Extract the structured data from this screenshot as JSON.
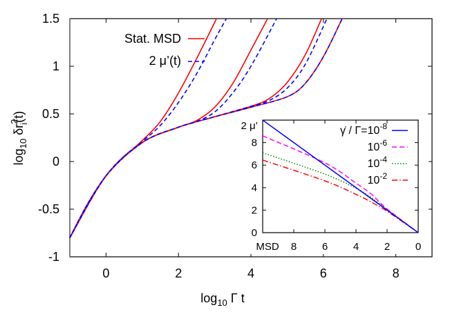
{
  "chart_data": [
    {
      "type": "line",
      "title": "",
      "xlabel": "log10 Γ t",
      "ylabel": "log10 δr_i^2(t)",
      "xlim": [
        -1,
        9
      ],
      "ylim": [
        -1,
        1.5
      ],
      "xticks": [
        "0",
        "2",
        "4",
        "6",
        "8"
      ],
      "yticks": [
        "-1",
        "-0.5",
        "0",
        "0.5",
        "1",
        "1.5"
      ],
      "grid": false,
      "legend_position": "upper left",
      "legend": [
        {
          "label": "Stat. MSD",
          "color": "#ff0000",
          "style": "solid"
        },
        {
          "label": "2 μ'(t)",
          "color": "#0000ff",
          "style": "dashed"
        }
      ],
      "series": [
        {
          "name": "Stat. MSD (γ̇/Γ=1e-2)",
          "color": "#ff0000",
          "style": "solid",
          "x": [
            -1,
            -0.5,
            0,
            0.5,
            1,
            1.5,
            2,
            2.5,
            3.05
          ],
          "y": [
            -0.8,
            -0.44,
            -0.15,
            0.05,
            0.22,
            0.42,
            0.72,
            1.08,
            1.5
          ]
        },
        {
          "name": "2 μ'(t) (γ̇/Γ=1e-2)",
          "color": "#0000ff",
          "style": "dashed",
          "x": [
            -1,
            -0.5,
            0,
            0.5,
            1,
            1.5,
            2,
            2.5,
            3,
            3.32
          ],
          "y": [
            -0.8,
            -0.44,
            -0.15,
            0.05,
            0.21,
            0.38,
            0.62,
            0.92,
            1.28,
            1.5
          ]
        },
        {
          "name": "Stat. MSD (γ̇/Γ=1e-4)",
          "color": "#ff0000",
          "style": "solid",
          "x": [
            -1,
            0,
            1,
            2,
            2.5,
            3,
            3.5,
            4,
            4.46
          ],
          "y": [
            -0.8,
            -0.15,
            0.2,
            0.36,
            0.43,
            0.57,
            0.82,
            1.17,
            1.5
          ]
        },
        {
          "name": "2 μ'(t) (γ̇/Γ=1e-4)",
          "color": "#0000ff",
          "style": "dashed",
          "x": [
            -1,
            0,
            1,
            2,
            2.5,
            3,
            3.5,
            4,
            4.71
          ],
          "y": [
            -0.8,
            -0.15,
            0.2,
            0.36,
            0.42,
            0.52,
            0.72,
            1.0,
            1.5
          ]
        },
        {
          "name": "Stat. MSD (γ̇/Γ=1e-6)",
          "color": "#ff0000",
          "style": "solid",
          "x": [
            -1,
            0,
            1,
            2,
            3,
            4,
            4.5,
            5,
            5.5,
            5.95
          ],
          "y": [
            -0.8,
            -0.15,
            0.2,
            0.36,
            0.47,
            0.58,
            0.66,
            0.83,
            1.12,
            1.5
          ]
        },
        {
          "name": "2 μ'(t) (γ̇/Γ=1e-6)",
          "color": "#0000ff",
          "style": "dashed",
          "x": [
            -1,
            0,
            1,
            2,
            3,
            4,
            4.5,
            5,
            5.5,
            6.1
          ],
          "y": [
            -0.8,
            -0.15,
            0.2,
            0.36,
            0.47,
            0.58,
            0.64,
            0.77,
            1.02,
            1.5
          ]
        },
        {
          "name": "Stat. MSD / 2 μ'(t) (γ̇/Γ=1e-8)",
          "color": "#ff0000",
          "style": "solid",
          "x": [
            -1,
            0,
            1,
            2,
            3,
            4,
            5,
            5.5,
            6,
            6.52
          ],
          "y": [
            -0.8,
            -0.15,
            0.2,
            0.36,
            0.47,
            0.57,
            0.68,
            0.82,
            1.1,
            1.5
          ]
        }
      ]
    },
    {
      "type": "line",
      "title": "",
      "xlabel": "MSD",
      "ylabel": "2 μ'",
      "xlim": [
        10,
        0
      ],
      "ylim": [
        0,
        10
      ],
      "xticks": [
        "8",
        "6",
        "4",
        "2",
        "0"
      ],
      "yticks": [
        "0",
        "2",
        "4",
        "6",
        "8"
      ],
      "grid": false,
      "legend_position": "upper right",
      "legend_title": "γ̇ / Γ",
      "series": [
        {
          "name": "γ̇/Γ=10^-8",
          "color": "#0000ff",
          "style": "solid",
          "x": [
            10,
            0
          ],
          "y": [
            10,
            0
          ]
        },
        {
          "name": "10^-6",
          "color": "#ff00ff",
          "style": "dashed",
          "x": [
            10,
            6,
            4,
            3,
            2,
            0
          ],
          "y": [
            8.6,
            6.2,
            4.4,
            3.4,
            2.1,
            0
          ]
        },
        {
          "name": "10^-4",
          "color": "#008000",
          "style": "dotted",
          "x": [
            10,
            6,
            4,
            3,
            2,
            0
          ],
          "y": [
            7.1,
            5.2,
            3.95,
            3.1,
            2.05,
            0
          ]
        },
        {
          "name": "10^-2",
          "color": "#ff0000",
          "style": "dash-dot",
          "x": [
            10,
            6,
            4,
            3,
            2,
            0
          ],
          "y": [
            6.45,
            4.6,
            3.4,
            2.7,
            1.9,
            0
          ]
        }
      ]
    }
  ],
  "main": {
    "xlabel_prefix": "log",
    "xlabel_sub": "10",
    "xlabel_suffix": " Γ t",
    "ylabel_prefix": "log",
    "ylabel_sub": "10",
    "ylabel_mid": " δr",
    "ylabel_sup": "2",
    "ylabel_sub2": "i",
    "ylabel_suffix": "(t)",
    "xticks": [
      {
        "v": 0,
        "label": "0"
      },
      {
        "v": 2,
        "label": "2"
      },
      {
        "v": 4,
        "label": "4"
      },
      {
        "v": 6,
        "label": "6"
      },
      {
        "v": 8,
        "label": "8"
      }
    ],
    "yticks": [
      {
        "v": -1,
        "label": "-1"
      },
      {
        "v": -0.5,
        "label": "-0.5"
      },
      {
        "v": 0,
        "label": "0"
      },
      {
        "v": 0.5,
        "label": "0.5"
      },
      {
        "v": 1,
        "label": "1"
      },
      {
        "v": 1.5,
        "label": "1.5"
      }
    ],
    "legend": [
      {
        "label": "Stat. MSD",
        "color": "#ff0000",
        "dash": ""
      },
      {
        "label": "2 μ’(t)",
        "color": "#0000ff",
        "dash": "6,4"
      }
    ]
  },
  "inset": {
    "ylabel": "2 μ’",
    "xlabel": "MSD",
    "xticks": [
      {
        "v": 8,
        "label": "8"
      },
      {
        "v": 6,
        "label": "6"
      },
      {
        "v": 4,
        "label": "4"
      },
      {
        "v": 2,
        "label": "2"
      },
      {
        "v": 0,
        "label": "0"
      }
    ],
    "yticks": [
      {
        "v": 0,
        "label": "0"
      },
      {
        "v": 2,
        "label": "2"
      },
      {
        "v": 4,
        "label": "4"
      },
      {
        "v": 6,
        "label": "6"
      },
      {
        "v": 8,
        "label": "8"
      }
    ],
    "legend_prefix": "γ̇ / Γ=",
    "legend": [
      {
        "base": "10",
        "exp": "-8",
        "color": "#0000ff",
        "dash": ""
      },
      {
        "base": "10",
        "exp": "-6",
        "color": "#ff00ff",
        "dash": "7,4"
      },
      {
        "base": "10",
        "exp": "-4",
        "color": "#008000",
        "dash": "1.5,2.5"
      },
      {
        "base": "10",
        "exp": "-2",
        "color": "#ff0000",
        "dash": "8,3,1.5,3"
      }
    ]
  }
}
